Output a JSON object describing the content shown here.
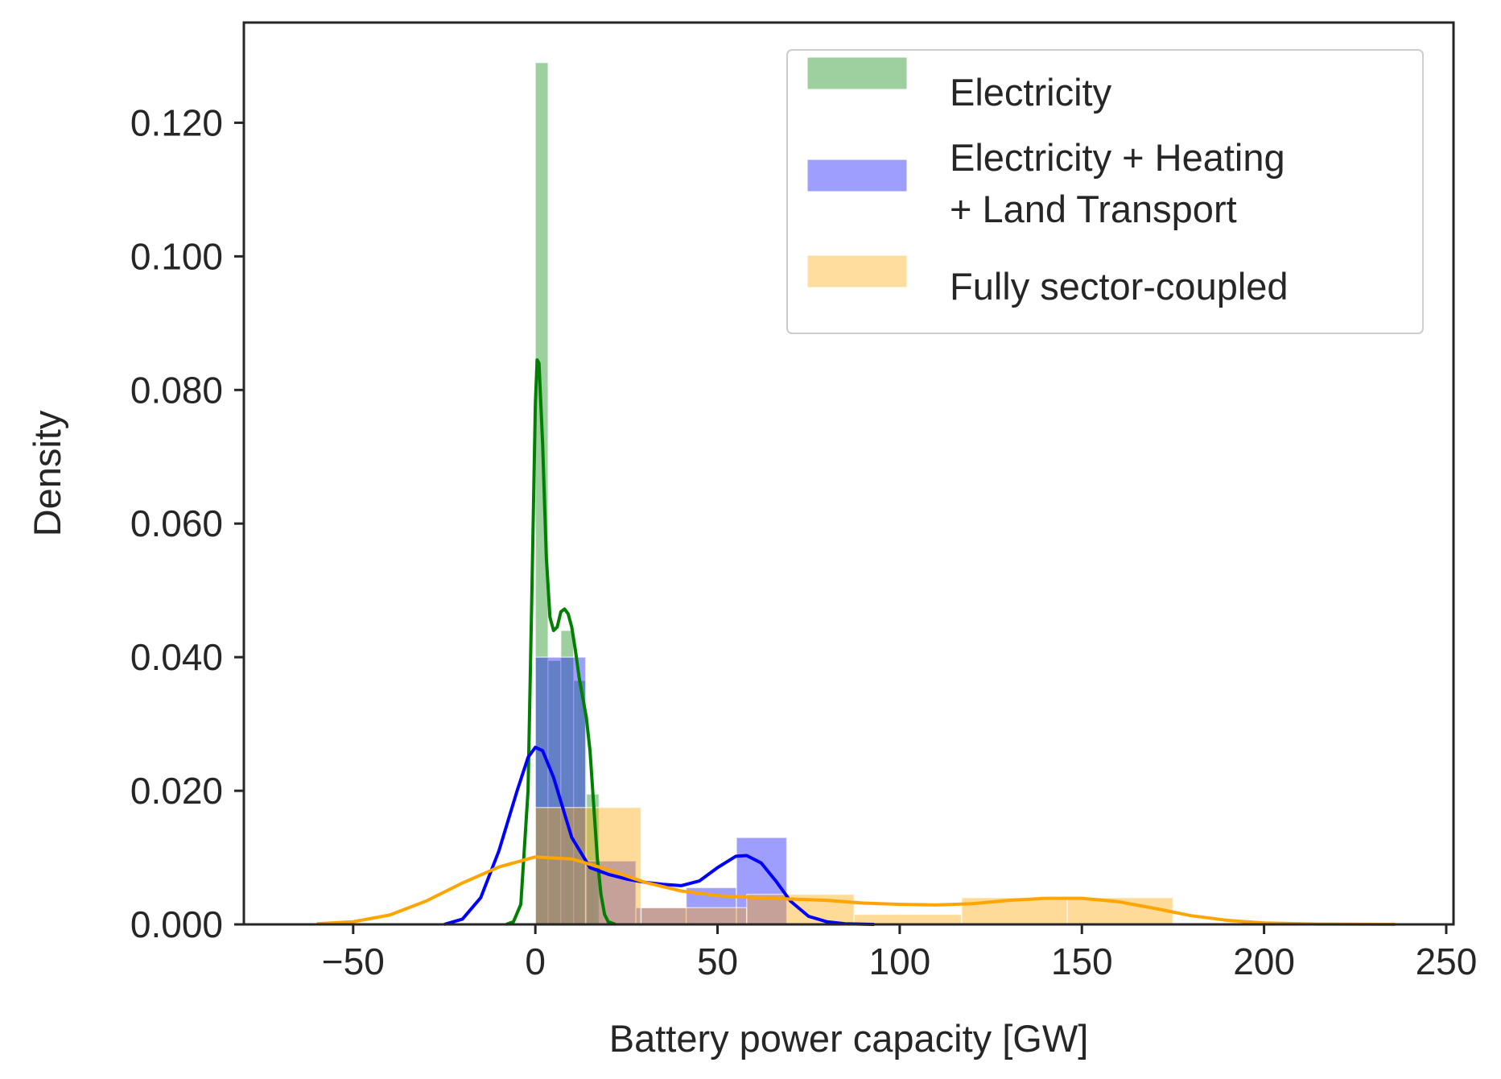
{
  "chart_data": {
    "type": "bar",
    "subtype": "histogram-with-kde",
    "title": "",
    "xlabel": "Battery power capacity [GW]",
    "ylabel": "Density",
    "xlim": [
      -80,
      252
    ],
    "ylim": [
      0,
      0.135
    ],
    "xticks": [
      -50,
      0,
      50,
      100,
      150,
      200,
      250
    ],
    "xtick_labels": [
      "−50",
      "0",
      "50",
      "100",
      "150",
      "200",
      "250"
    ],
    "yticks": [
      0,
      0.02,
      0.04,
      0.06,
      0.08,
      0.1,
      0.12
    ],
    "ytick_labels": [
      "0.000",
      "0.020",
      "0.040",
      "0.060",
      "0.080",
      "0.100",
      "0.120"
    ],
    "grid": false,
    "legend_position": "top-right",
    "series": [
      {
        "name": "Electricity",
        "color": "#008000",
        "bins": [
          {
            "x0": 0,
            "x1": 3.5,
            "density": 0.129
          },
          {
            "x0": 3.5,
            "x1": 7,
            "density": 0.0395
          },
          {
            "x0": 7,
            "x1": 10.5,
            "density": 0.044
          },
          {
            "x0": 10.5,
            "x1": 14,
            "density": 0.0365
          },
          {
            "x0": 14,
            "x1": 17.5,
            "density": 0.0195
          }
        ],
        "kde": [
          [
            -8,
            0
          ],
          [
            -6,
            0.0004
          ],
          [
            -4,
            0.003
          ],
          [
            -2,
            0.02
          ],
          [
            -1,
            0.048
          ],
          [
            0,
            0.078
          ],
          [
            0.5,
            0.0845
          ],
          [
            1,
            0.084
          ],
          [
            2,
            0.072
          ],
          [
            3,
            0.055
          ],
          [
            4,
            0.046
          ],
          [
            5,
            0.044
          ],
          [
            6,
            0.0445
          ],
          [
            7,
            0.0468
          ],
          [
            8,
            0.0472
          ],
          [
            9,
            0.0465
          ],
          [
            10,
            0.0445
          ],
          [
            11,
            0.041
          ],
          [
            12,
            0.037
          ],
          [
            13,
            0.034
          ],
          [
            14,
            0.031
          ],
          [
            15,
            0.026
          ],
          [
            16,
            0.018
          ],
          [
            17,
            0.01
          ],
          [
            18,
            0.0045
          ],
          [
            19,
            0.0015
          ],
          [
            20,
            0.0004
          ],
          [
            22,
            0
          ]
        ]
      },
      {
        "name": "Electricity + Heating\n+ Land Transport",
        "color": "#0000ff",
        "bins": [
          {
            "x0": 0,
            "x1": 13.8,
            "density": 0.04
          },
          {
            "x0": 13.8,
            "x1": 27.6,
            "density": 0.0095
          },
          {
            "x0": 27.6,
            "x1": 41.4,
            "density": 0.0025
          },
          {
            "x0": 41.4,
            "x1": 55.2,
            "density": 0.0055
          },
          {
            "x0": 55.2,
            "x1": 69,
            "density": 0.013
          }
        ],
        "kde": [
          [
            -25,
            0
          ],
          [
            -20,
            0.0008
          ],
          [
            -15,
            0.004
          ],
          [
            -10,
            0.011
          ],
          [
            -5,
            0.02
          ],
          [
            -2,
            0.025
          ],
          [
            0,
            0.0265
          ],
          [
            2,
            0.026
          ],
          [
            5,
            0.022
          ],
          [
            10,
            0.013
          ],
          [
            15,
            0.0085
          ],
          [
            20,
            0.0075
          ],
          [
            25,
            0.0068
          ],
          [
            30,
            0.0063
          ],
          [
            35,
            0.006
          ],
          [
            40,
            0.0058
          ],
          [
            45,
            0.0065
          ],
          [
            50,
            0.0085
          ],
          [
            55,
            0.0102
          ],
          [
            58,
            0.0103
          ],
          [
            62,
            0.0092
          ],
          [
            66,
            0.0065
          ],
          [
            70,
            0.0035
          ],
          [
            75,
            0.0012
          ],
          [
            80,
            0.0004
          ],
          [
            85,
            0.0001
          ],
          [
            93,
            0
          ]
        ]
      },
      {
        "name": "Fully sector-coupled",
        "color": "#ffa500",
        "bins": [
          {
            "x0": 0,
            "x1": 29,
            "density": 0.0175
          },
          {
            "x0": 29,
            "x1": 58,
            "density": 0.0025
          },
          {
            "x0": 58,
            "x1": 87.5,
            "density": 0.0045
          },
          {
            "x0": 87.5,
            "x1": 117,
            "density": 0.0015
          },
          {
            "x0": 117,
            "x1": 146,
            "density": 0.004
          },
          {
            "x0": 146,
            "x1": 175,
            "density": 0.004
          }
        ],
        "kde": [
          [
            -60,
            0.0001
          ],
          [
            -50,
            0.0004
          ],
          [
            -40,
            0.0014
          ],
          [
            -30,
            0.0035
          ],
          [
            -20,
            0.0062
          ],
          [
            -10,
            0.0086
          ],
          [
            0,
            0.0101
          ],
          [
            10,
            0.0098
          ],
          [
            20,
            0.0082
          ],
          [
            30,
            0.0063
          ],
          [
            40,
            0.005
          ],
          [
            50,
            0.0043
          ],
          [
            60,
            0.004
          ],
          [
            70,
            0.0038
          ],
          [
            80,
            0.0036
          ],
          [
            90,
            0.0032
          ],
          [
            100,
            0.003
          ],
          [
            110,
            0.0029
          ],
          [
            120,
            0.0031
          ],
          [
            130,
            0.0036
          ],
          [
            140,
            0.0039
          ],
          [
            150,
            0.0039
          ],
          [
            160,
            0.0034
          ],
          [
            170,
            0.0024
          ],
          [
            180,
            0.0013
          ],
          [
            190,
            0.0006
          ],
          [
            200,
            0.0002
          ],
          [
            215,
            5e-05
          ],
          [
            236,
            0
          ]
        ]
      }
    ]
  }
}
